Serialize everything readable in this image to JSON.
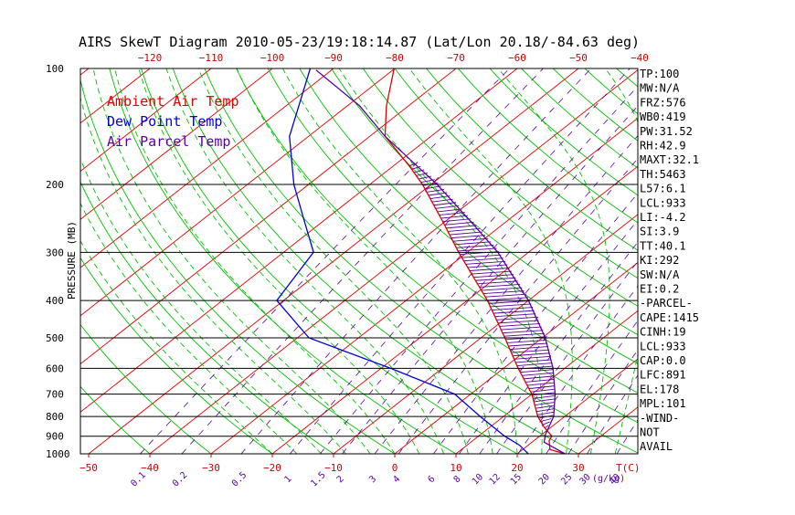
{
  "chart_data": {
    "type": "line",
    "title": "AIRS SkewT Diagram 2010-05-23/19:18:14.87 (Lat/Lon 20.18/-84.63 deg)",
    "ylabel": "PRESSURE (MB)",
    "xunit_label": "T(C)",
    "mixing_unit_label": "(g/kg)",
    "ylim": [
      1000,
      100
    ],
    "y_scale": "log",
    "skew_degrees_per_decade": 80,
    "pressure_ticks": [
      "100",
      "200",
      "300",
      "400",
      "500",
      "600",
      "700",
      "800",
      "900",
      "1000"
    ],
    "pressure_tick_values": [
      100,
      200,
      300,
      400,
      500,
      600,
      700,
      800,
      900,
      1000
    ],
    "bottom_temp_ticks": [
      -50,
      -40,
      -30,
      -20,
      -10,
      0,
      10,
      20,
      30
    ],
    "top_temp_ticks": [
      -120,
      -110,
      -100,
      -90,
      -80,
      -70,
      -60,
      -50,
      -40
    ],
    "mixing_ratio_labels": [
      "0.1",
      "0.2",
      "0.5",
      "1",
      "1.5",
      "2",
      "3",
      "4",
      "6",
      "8",
      "10",
      "12",
      "15",
      "20",
      "25",
      "30",
      "40"
    ],
    "mixing_ratio_values": [
      0.1,
      0.2,
      0.5,
      1,
      1.5,
      2,
      3,
      4,
      6,
      8,
      10,
      12,
      15,
      20,
      25,
      30,
      40
    ],
    "legend": [
      {
        "label": "Ambient Air Temp",
        "color": "#e00000"
      },
      {
        "label": "Dew Point Temp",
        "color": "#0000e0"
      },
      {
        "label": "Air Parcel Temp",
        "color": "#5a00a0"
      }
    ],
    "series": [
      {
        "name": "Ambient Air Temp",
        "color": "#e00000",
        "points": [
          {
            "p": 1000,
            "t": 27.8
          },
          {
            "p": 975,
            "t": 24.5
          },
          {
            "p": 925,
            "t": 22.5
          },
          {
            "p": 900,
            "t": 22.0
          },
          {
            "p": 850,
            "t": 18.7
          },
          {
            "p": 800,
            "t": 15.6
          },
          {
            "p": 700,
            "t": 10.0
          },
          {
            "p": 600,
            "t": 2.4
          },
          {
            "p": 500,
            "t": -6.1
          },
          {
            "p": 400,
            "t": -16.7
          },
          {
            "p": 300,
            "t": -31.4
          },
          {
            "p": 250,
            "t": -40.3
          },
          {
            "p": 200,
            "t": -51.4
          },
          {
            "p": 180,
            "t": -57.1
          },
          {
            "p": 150,
            "t": -67.5
          },
          {
            "p": 125,
            "t": -73.6
          },
          {
            "p": 100,
            "t": -80.1
          }
        ]
      },
      {
        "name": "Dew Point Temp",
        "color": "#0000e0",
        "points": [
          {
            "p": 1000,
            "t": 21.8
          },
          {
            "p": 950,
            "t": 18.6
          },
          {
            "p": 900,
            "t": 14.3
          },
          {
            "p": 800,
            "t": 6.2
          },
          {
            "p": 700,
            "t": -2.6
          },
          {
            "p": 600,
            "t": -18.4
          },
          {
            "p": 500,
            "t": -38.1
          },
          {
            "p": 400,
            "t": -51.1
          },
          {
            "p": 300,
            "t": -55.1
          },
          {
            "p": 250,
            "t": -62.9
          },
          {
            "p": 200,
            "t": -72.4
          },
          {
            "p": 150,
            "t": -83.1
          },
          {
            "p": 100,
            "t": -93.8
          }
        ]
      },
      {
        "name": "Air Parcel Temp",
        "color": "#5a00a0",
        "points": [
          {
            "p": 1000,
            "t": 27.8
          },
          {
            "p": 933,
            "t": 22.0
          },
          {
            "p": 891,
            "t": 20.6
          },
          {
            "p": 800,
            "t": 18.2
          },
          {
            "p": 700,
            "t": 13.8
          },
          {
            "p": 600,
            "t": 8.1
          },
          {
            "p": 500,
            "t": 0.5
          },
          {
            "p": 400,
            "t": -10.0
          },
          {
            "p": 300,
            "t": -25.0
          },
          {
            "p": 250,
            "t": -35.7
          },
          {
            "p": 200,
            "t": -49.0
          },
          {
            "p": 178,
            "t": -56.5
          },
          {
            "p": 150,
            "t": -67.5
          },
          {
            "p": 125,
            "t": -78.0
          },
          {
            "p": 101,
            "t": -92.5
          }
        ]
      }
    ]
  },
  "indices": [
    "TP:100",
    "MW:N/A",
    "FRZ:576",
    "WB0:419",
    "PW:31.52",
    "RH:42.9",
    "MAXT:32.1",
    "TH:5463",
    "L57:6.1",
    "LCL:933",
    "LI:-4.2",
    "SI:3.9",
    "TT:40.1",
    "KI:292",
    "SW:N/A",
    "EI:0.2",
    "-PARCEL-",
    "CAPE:1415",
    "CINH:19",
    "LCL:933",
    "CAP:0.0",
    "LFC:891",
    "EL:178",
    "MPL:101",
    "-WIND-",
    "NOT",
    "AVAIL"
  ],
  "colors": {
    "isotherm": "#e00000",
    "dry_adiabat": "#00c000",
    "moist_adiabat": "#00c000",
    "mixing_ratio": "#5a00a0",
    "hatch": "#5a00a0",
    "frame": "#000000"
  }
}
